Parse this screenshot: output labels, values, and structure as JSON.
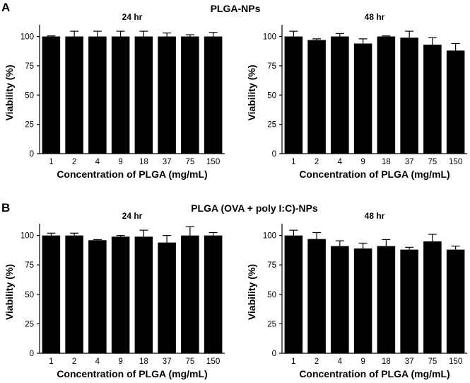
{
  "panels": [
    {
      "letter": "A",
      "title": "PLGA-NPs",
      "charts": [
        {
          "type": "bar",
          "title": "24 hr",
          "xlabel": "Concentration of PLGA (mg/mL)",
          "ylabel": "Viability (%)",
          "categories": [
            "1",
            "2",
            "4",
            "9",
            "18",
            "37",
            "75",
            "150"
          ],
          "values": [
            100,
            100,
            100,
            100,
            100,
            100,
            100,
            100
          ],
          "errors": [
            0.5,
            4.5,
            4.5,
            4.5,
            4.5,
            3,
            1.5,
            3.5
          ],
          "ylim": [
            0,
            110
          ],
          "yticks": [
            0,
            25,
            50,
            75,
            100
          ],
          "grid": false
        },
        {
          "type": "bar",
          "title": "48 hr",
          "xlabel": "Concentration of PLGA (mg/mL)",
          "ylabel": "Viability (%)",
          "categories": [
            "1",
            "2",
            "4",
            "9",
            "18",
            "37",
            "75",
            "150"
          ],
          "values": [
            100,
            97,
            100,
            94,
            100,
            99,
            93,
            88
          ],
          "errors": [
            4.5,
            1,
            2.5,
            4,
            0.5,
            5.5,
            6,
            6
          ],
          "ylim": [
            0,
            110
          ],
          "yticks": [
            0,
            25,
            50,
            75,
            100
          ],
          "grid": false
        }
      ]
    },
    {
      "letter": "B",
      "title": "PLGA (OVA + poly I:C)-NPs",
      "charts": [
        {
          "type": "bar",
          "title": "24 hr",
          "xlabel": "Concentration of PLGA (mg/mL)",
          "ylabel": "Viability (%)",
          "categories": [
            "1",
            "2",
            "4",
            "9",
            "18",
            "37",
            "75",
            "150"
          ],
          "values": [
            100,
            100,
            96,
            99,
            99,
            94,
            100,
            100
          ],
          "errors": [
            2,
            2,
            0.5,
            1,
            5.5,
            6,
            7.5,
            2.5
          ],
          "ylim": [
            0,
            110
          ],
          "yticks": [
            0,
            25,
            50,
            75,
            100
          ],
          "grid": false
        },
        {
          "type": "bar",
          "title": "48 hr",
          "xlabel": "Concentration of PLGA (mg/mL)",
          "ylabel": "Viability (%)",
          "categories": [
            "1",
            "2",
            "4",
            "9",
            "18",
            "37",
            "75",
            "150"
          ],
          "values": [
            100,
            97,
            91,
            89,
            91,
            88,
            95,
            88
          ],
          "errors": [
            4.5,
            5.5,
            4.5,
            4.5,
            5.5,
            2,
            6,
            3
          ],
          "ylim": [
            0,
            110
          ],
          "yticks": [
            0,
            25,
            50,
            75,
            100
          ],
          "grid": false
        }
      ]
    }
  ],
  "chart_data": [
    {
      "type": "bar",
      "title": "24 hr",
      "xlabel": "Concentration of PLGA (mg/mL)",
      "ylabel": "Viability (%)",
      "categories": [
        "1",
        "2",
        "4",
        "9",
        "18",
        "37",
        "75",
        "150"
      ],
      "values": [
        100,
        100,
        100,
        100,
        100,
        100,
        100,
        100
      ],
      "errors": [
        0.5,
        4.5,
        4.5,
        4.5,
        4.5,
        3,
        1.5,
        3.5
      ],
      "ylim": [
        0,
        110
      ],
      "grid": false
    },
    {
      "type": "bar",
      "title": "48 hr",
      "xlabel": "Concentration of PLGA (mg/mL)",
      "ylabel": "Viability (%)",
      "categories": [
        "1",
        "2",
        "4",
        "9",
        "18",
        "37",
        "75",
        "150"
      ],
      "values": [
        100,
        97,
        100,
        94,
        100,
        99,
        93,
        88
      ],
      "errors": [
        4.5,
        1,
        2.5,
        4,
        0.5,
        5.5,
        6,
        6
      ],
      "ylim": [
        0,
        110
      ],
      "grid": false
    },
    {
      "type": "bar",
      "title": "24 hr",
      "xlabel": "Concentration of PLGA (mg/mL)",
      "ylabel": "Viability (%)",
      "categories": [
        "1",
        "2",
        "4",
        "9",
        "18",
        "37",
        "75",
        "150"
      ],
      "values": [
        100,
        100,
        96,
        99,
        99,
        94,
        100,
        100
      ],
      "errors": [
        2,
        2,
        0.5,
        1,
        5.5,
        6,
        7.5,
        2.5
      ],
      "ylim": [
        0,
        110
      ],
      "grid": false
    },
    {
      "type": "bar",
      "title": "48 hr",
      "xlabel": "Concentration of PLGA (mg/mL)",
      "ylabel": "Viability (%)",
      "categories": [
        "1",
        "2",
        "4",
        "9",
        "18",
        "37",
        "75",
        "150"
      ],
      "values": [
        100,
        97,
        91,
        89,
        91,
        88,
        95,
        88
      ],
      "errors": [
        4.5,
        5.5,
        4.5,
        4.5,
        5.5,
        2,
        6,
        3
      ],
      "ylim": [
        0,
        110
      ],
      "grid": false
    }
  ],
  "colors": {
    "bar": "#000000",
    "axis": "#000000",
    "background": "#ffffff"
  }
}
